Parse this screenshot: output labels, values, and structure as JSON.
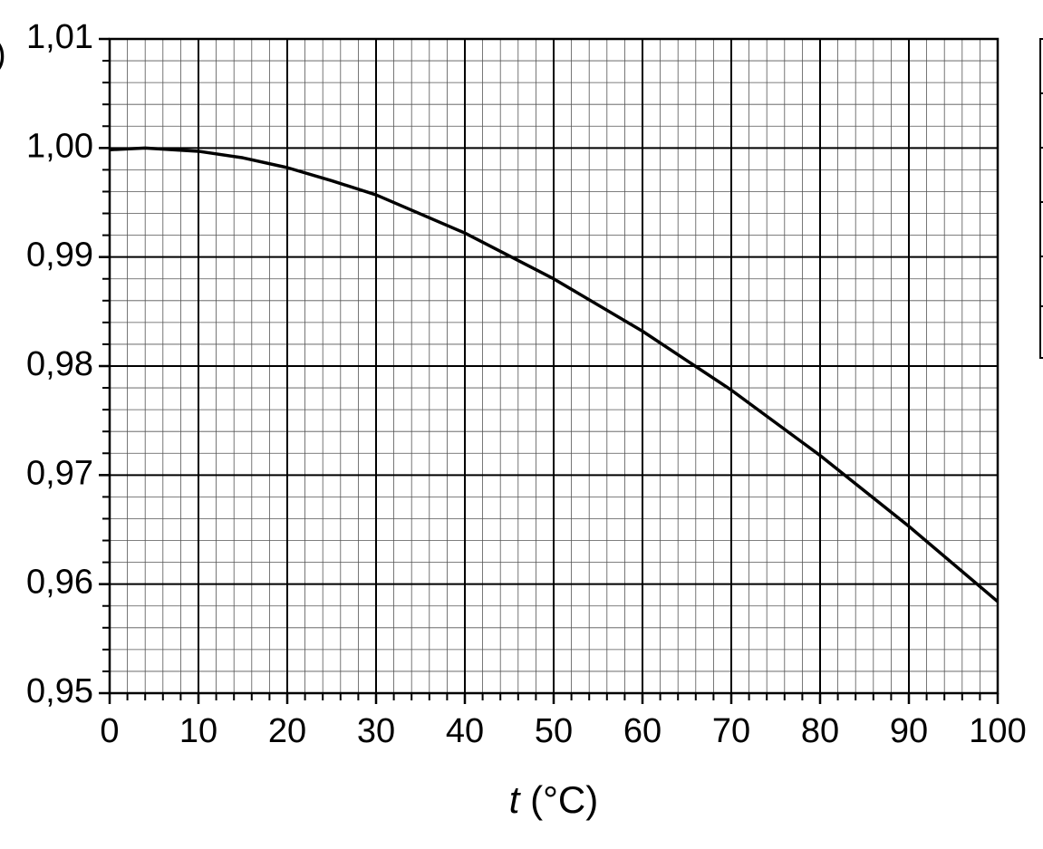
{
  "chart_data": {
    "type": "line",
    "xlabel": {
      "symbol": "t",
      "unit": "(°C)"
    },
    "cropped_label": ")",
    "x": [
      0,
      4,
      10,
      15,
      20,
      25,
      30,
      40,
      50,
      60,
      70,
      80,
      90,
      100
    ],
    "series": [
      {
        "color": "#000000",
        "values": [
          0.99984,
          1.0,
          0.9997,
          0.9991,
          0.9982,
          0.997,
          0.9957,
          0.9922,
          0.988,
          0.9832,
          0.9778,
          0.9718,
          0.9653,
          0.9584
        ]
      }
    ],
    "xlim": [
      0,
      100
    ],
    "xticks": [
      0,
      10,
      20,
      30,
      40,
      50,
      60,
      70,
      80,
      90,
      100
    ],
    "ylim": [
      0.95,
      1.01
    ],
    "yticks": [
      {
        "value": 0.95,
        "label": "0,95"
      },
      {
        "value": 0.96,
        "label": "0,96"
      },
      {
        "value": 0.97,
        "label": "0,97"
      },
      {
        "value": 0.98,
        "label": "0,98"
      },
      {
        "value": 0.99,
        "label": "0,99"
      },
      {
        "value": 1.0,
        "label": "1,00"
      },
      {
        "value": 1.01,
        "label": "1,01"
      }
    ],
    "grid": true,
    "minor_divisions": 5
  }
}
